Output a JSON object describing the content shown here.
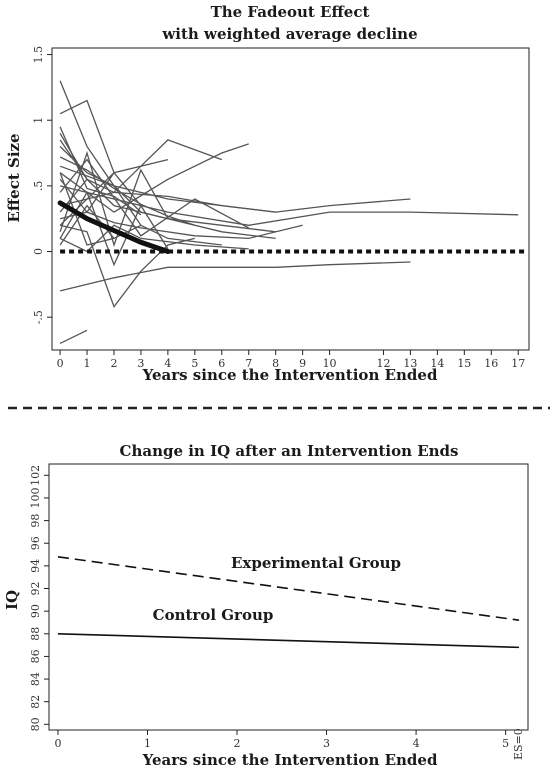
{
  "chart_data": [
    {
      "type": "line",
      "title": "The Fadeout Effect",
      "subtitle": "with weighted average decline",
      "xlabel": "Years since the Intervention Ended",
      "ylabel": "Effect Size",
      "x_ticks": [
        0,
        1,
        2,
        3,
        4,
        5,
        6,
        7,
        8,
        9,
        10,
        12,
        13,
        14,
        15,
        16,
        17
      ],
      "y_ticks": [
        -0.5,
        0,
        0.5,
        1,
        1.5
      ],
      "y_tick_labels": [
        "-.5",
        "0",
        ".5",
        "1",
        "1.5"
      ],
      "xlim": [
        -0.3,
        17.4
      ],
      "ylim": [
        -0.75,
        1.55
      ],
      "zero_line": {
        "y": 0,
        "style": "dotted"
      },
      "weighted_average": {
        "x": [
          0,
          1,
          2,
          3,
          4
        ],
        "y": [
          0.37,
          0.25,
          0.16,
          0.07,
          0.0
        ]
      },
      "studies": [
        {
          "x": [
            0,
            1,
            2,
            3,
            4,
            5
          ],
          "y": [
            0.72,
            0.62,
            0.48,
            0.36,
            0.27,
            0.2
          ]
        },
        {
          "x": [
            0,
            1,
            2,
            3
          ],
          "y": [
            0.95,
            0.48,
            0.42,
            0.28
          ]
        },
        {
          "x": [
            0,
            1,
            2,
            4,
            6,
            8
          ],
          "y": [
            0.85,
            0.55,
            0.35,
            0.25,
            0.15,
            0.1
          ]
        },
        {
          "x": [
            0,
            2,
            4,
            6,
            7
          ],
          "y": [
            0.6,
            0.3,
            0.55,
            0.75,
            0.82
          ]
        },
        {
          "x": [
            0,
            1,
            3,
            5,
            7
          ],
          "y": [
            0.45,
            0.7,
            0.12,
            0.4,
            0.18
          ]
        },
        {
          "x": [
            0,
            1,
            2,
            3,
            4,
            5
          ],
          "y": [
            0.2,
            0.15,
            -0.42,
            -0.15,
            0.05,
            0.1
          ]
        },
        {
          "x": [
            0,
            1
          ],
          "y": [
            -0.7,
            -0.6
          ]
        },
        {
          "x": [
            0,
            2,
            4,
            8,
            10,
            13
          ],
          "y": [
            -0.3,
            -0.2,
            -0.12,
            -0.12,
            -0.1,
            -0.08
          ]
        },
        {
          "x": [
            0,
            2,
            4,
            6,
            8,
            10,
            13
          ],
          "y": [
            0.35,
            0.45,
            0.42,
            0.35,
            0.3,
            0.35,
            0.4
          ]
        },
        {
          "x": [
            0,
            2,
            4,
            7,
            10,
            13,
            17
          ],
          "y": [
            0.5,
            0.4,
            0.3,
            0.2,
            0.3,
            0.3,
            0.28
          ]
        },
        {
          "x": [
            0,
            1,
            2
          ],
          "y": [
            1.05,
            1.15,
            0.6
          ]
        },
        {
          "x": [
            0,
            1,
            2,
            3,
            4,
            6
          ],
          "y": [
            0.3,
            0.55,
            0.45,
            0.65,
            0.85,
            0.7
          ]
        },
        {
          "x": [
            0,
            1,
            2,
            3,
            4
          ],
          "y": [
            0.15,
            0.75,
            0.05,
            0.62,
            0.25
          ]
        },
        {
          "x": [
            0,
            1,
            2,
            3,
            4
          ],
          "y": [
            0.1,
            0.45,
            -0.1,
            0.35,
            0.02
          ]
        },
        {
          "x": [
            0,
            1,
            2,
            3,
            4,
            6
          ],
          "y": [
            0.8,
            0.6,
            0.5,
            0.2,
            0.1,
            0.05
          ]
        },
        {
          "x": [
            0,
            1,
            2,
            3
          ],
          "y": [
            0.6,
            0.05,
            0.1,
            0.2
          ]
        },
        {
          "x": [
            0,
            1,
            2,
            3,
            5,
            7,
            9
          ],
          "y": [
            0.25,
            0.3,
            0.22,
            0.18,
            0.12,
            0.1,
            0.2
          ]
        },
        {
          "x": [
            0,
            1,
            2,
            3,
            4,
            6,
            8
          ],
          "y": [
            1.3,
            0.8,
            0.5,
            0.3,
            0.25,
            0.2,
            0.15
          ]
        },
        {
          "x": [
            0,
            1,
            2,
            3,
            5,
            7
          ],
          "y": [
            0.1,
            0.0,
            0.2,
            0.1,
            0.05,
            0.02
          ]
        },
        {
          "x": [
            0,
            2,
            4
          ],
          "y": [
            0.2,
            0.6,
            0.7
          ]
        },
        {
          "x": [
            0,
            1,
            2,
            3
          ],
          "y": [
            0.55,
            0.3,
            0.6,
            0.35
          ]
        },
        {
          "x": [
            0,
            1
          ],
          "y": [
            0.9,
            0.55
          ]
        },
        {
          "x": [
            0,
            1,
            2
          ],
          "y": [
            0.05,
            0.35,
            0.1
          ]
        },
        {
          "x": [
            0,
            2,
            4,
            6,
            8
          ],
          "y": [
            0.65,
            0.5,
            0.4,
            0.35,
            0.3
          ]
        }
      ]
    },
    {
      "type": "line",
      "title": "Change in IQ  after an Intervention Ends",
      "xlabel": "Years since the Intervention Ended",
      "ylabel": "IQ",
      "x_ticks": [
        0,
        1,
        2,
        3,
        4,
        5
      ],
      "x_tick_labels": [
        "0",
        "1",
        "2",
        "3",
        "4",
        "5"
      ],
      "extra_x_label": "ES=0",
      "y_ticks": [
        80,
        82,
        84,
        86,
        88,
        90,
        92,
        94,
        96,
        98,
        100,
        102
      ],
      "xlim": [
        -0.1,
        5.25
      ],
      "ylim": [
        79.5,
        103
      ],
      "series": [
        {
          "name": "Experimental Group",
          "x": [
            0,
            5.15
          ],
          "y": [
            94.8,
            89.2
          ],
          "style": "dashed"
        },
        {
          "name": "Control Group",
          "x": [
            0,
            5.15
          ],
          "y": [
            88.0,
            86.8
          ],
          "style": "solid"
        }
      ]
    }
  ]
}
